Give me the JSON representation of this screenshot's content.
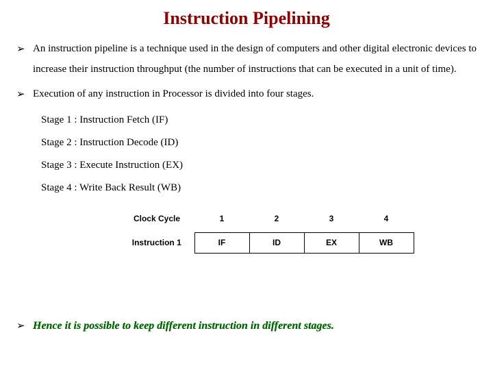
{
  "title": {
    "text": "Instruction Pipelining",
    "color": "#8B0000"
  },
  "bullets": [
    {
      "text": "An instruction pipeline is a technique used in the design of computers and other digital electronic devices to increase their instruction throughput (the number of instructions that can be executed in a unit of time)."
    },
    {
      "text": "Execution of any instruction in Processor is divided into four stages."
    }
  ],
  "stages": [
    {
      "text": "Stage 1 : Instruction Fetch (IF)"
    },
    {
      "text": "Stage 2 : Instruction Decode (ID)"
    },
    {
      "text": "Stage 3 : Execute Instruction (EX)"
    },
    {
      "text": "Stage 4 : Write Back Result (WB)"
    }
  ],
  "table": {
    "header_label": "Clock Cycle",
    "cycles": [
      "1",
      "2",
      "3",
      "4"
    ],
    "row_label": "Instruction 1",
    "row_values": [
      "IF",
      "ID",
      "EX",
      "WB"
    ]
  },
  "final": {
    "text": "Hence it is possible to keep different instruction in different stages.",
    "color": "#006400"
  },
  "bullet_glyph": "➢"
}
